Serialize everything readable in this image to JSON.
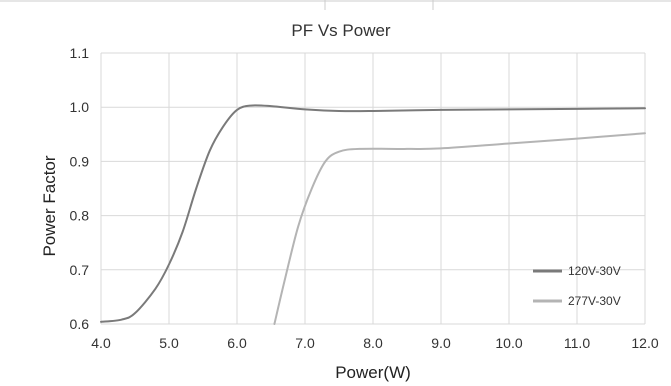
{
  "chart_data": {
    "type": "line",
    "title": "PF Vs Power",
    "xlabel": "Power(W)",
    "ylabel": "Power Factor",
    "xlim": [
      4.0,
      12.0
    ],
    "ylim": [
      0.6,
      1.1
    ],
    "x_ticks": [
      "4.0",
      "5.0",
      "6.0",
      "7.0",
      "8.0",
      "9.0",
      "10.0",
      "11.0",
      "12.0"
    ],
    "y_ticks": [
      "0.6",
      "0.7",
      "0.8",
      "0.9",
      "1.0",
      "1.1"
    ],
    "grid": true,
    "legend_position": "bottom-right",
    "series": [
      {
        "name": "120V-30V",
        "color": "#7a7a7a",
        "points": [
          [
            4.0,
            0.604
          ],
          [
            4.3,
            0.608
          ],
          [
            4.5,
            0.62
          ],
          [
            4.8,
            0.665
          ],
          [
            5.0,
            0.71
          ],
          [
            5.2,
            0.77
          ],
          [
            5.4,
            0.85
          ],
          [
            5.6,
            0.92
          ],
          [
            5.8,
            0.965
          ],
          [
            6.0,
            0.995
          ],
          [
            6.2,
            1.003
          ],
          [
            6.5,
            1.002
          ],
          [
            7.0,
            0.996
          ],
          [
            7.5,
            0.993
          ],
          [
            8.0,
            0.993
          ],
          [
            9.0,
            0.995
          ],
          [
            10.0,
            0.996
          ],
          [
            11.0,
            0.997
          ],
          [
            12.0,
            0.998
          ]
        ]
      },
      {
        "name": "277V-30V",
        "color": "#b4b4b4",
        "points": [
          [
            6.55,
            0.6
          ],
          [
            6.7,
            0.68
          ],
          [
            6.9,
            0.78
          ],
          [
            7.1,
            0.85
          ],
          [
            7.3,
            0.9
          ],
          [
            7.5,
            0.918
          ],
          [
            7.8,
            0.923
          ],
          [
            8.5,
            0.923
          ],
          [
            9.0,
            0.924
          ],
          [
            10.0,
            0.933
          ],
          [
            11.0,
            0.942
          ],
          [
            12.0,
            0.952
          ]
        ]
      }
    ]
  }
}
